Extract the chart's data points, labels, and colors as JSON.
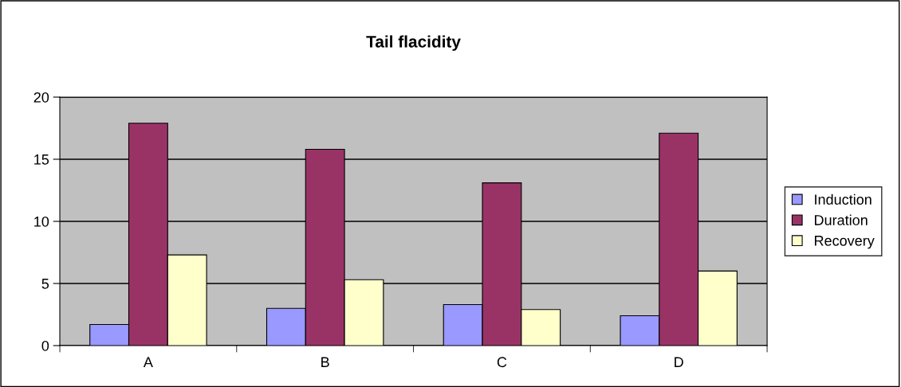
{
  "chart_data": {
    "type": "bar",
    "title": "Tail flacidity",
    "categories": [
      "A",
      "B",
      "C",
      "D"
    ],
    "series": [
      {
        "name": "Induction",
        "color": "#9999ff",
        "values": [
          1.7,
          3.0,
          3.3,
          2.4
        ]
      },
      {
        "name": "Duration",
        "color": "#993366",
        "values": [
          17.9,
          15.8,
          13.1,
          17.1
        ]
      },
      {
        "name": "Recovery",
        "color": "#ffffcc",
        "values": [
          7.3,
          5.3,
          2.9,
          6.0
        ]
      }
    ],
    "ylim": [
      0,
      20
    ],
    "yticks": [
      0,
      5,
      10,
      15,
      20
    ],
    "grid": "y",
    "legend": "right"
  }
}
